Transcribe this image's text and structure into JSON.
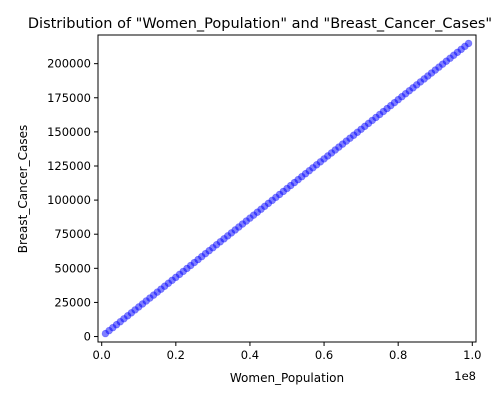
{
  "chart_data": {
    "type": "scatter",
    "title": "Distribution of \"Women_Population\" and \"Breast_Cancer_Cases\"",
    "xlabel": "Women_Population",
    "ylabel": "Breast_Cancer_Cases",
    "x_offset_label": "1e8",
    "xlim": [
      -1000000,
      101000000
    ],
    "ylim": [
      -4000,
      221000
    ],
    "x_ticks": [
      0,
      20000000,
      40000000,
      60000000,
      80000000,
      100000000
    ],
    "x_tick_labels": [
      "0.0",
      "0.2",
      "0.4",
      "0.6",
      "0.8",
      "1.0"
    ],
    "y_ticks": [
      0,
      25000,
      50000,
      75000,
      100000,
      125000,
      150000,
      175000,
      200000
    ],
    "y_tick_labels": [
      "0",
      "25000",
      "50000",
      "75000",
      "100000",
      "125000",
      "150000",
      "175000",
      "200000"
    ],
    "grid": false,
    "marker_color": "#0000ff",
    "marker_alpha": 0.5,
    "series": [
      {
        "x": [
          1000000,
          2000000,
          3000000,
          4000000,
          5000000,
          6000000,
          7000000,
          8000000,
          9000000,
          10000000,
          11000000,
          12000000,
          13000000,
          14000000,
          15000000,
          16000000,
          17000000,
          18000000,
          19000000,
          20000000,
          21000000,
          22000000,
          23000000,
          24000000,
          25000000,
          26000000,
          27000000,
          28000000,
          29000000,
          30000000,
          31000000,
          32000000,
          33000000,
          34000000,
          35000000,
          36000000,
          37000000,
          38000000,
          39000000,
          40000000,
          41000000,
          42000000,
          43000000,
          44000000,
          45000000,
          46000000,
          47000000,
          48000000,
          49000000,
          50000000,
          51000000,
          52000000,
          53000000,
          54000000,
          55000000,
          56000000,
          57000000,
          58000000,
          59000000,
          60000000,
          61000000,
          62000000,
          63000000,
          64000000,
          65000000,
          66000000,
          67000000,
          68000000,
          69000000,
          70000000,
          71000000,
          72000000,
          73000000,
          74000000,
          75000000,
          76000000,
          77000000,
          78000000,
          79000000,
          80000000,
          81000000,
          82000000,
          83000000,
          84000000,
          85000000,
          86000000,
          87000000,
          88000000,
          89000000,
          90000000,
          91000000,
          92000000,
          93000000,
          94000000,
          95000000,
          96000000,
          97000000,
          98000000,
          99000000
        ],
        "y": [
          2170,
          4340,
          6510,
          8680,
          10850,
          13020,
          15190,
          17360,
          19530,
          21700,
          23870,
          26040,
          28210,
          30380,
          32550,
          34720,
          36890,
          39060,
          41230,
          43400,
          45570,
          47740,
          49910,
          52080,
          54250,
          56420,
          58590,
          60760,
          62930,
          65100,
          67270,
          69440,
          71610,
          73780,
          75950,
          78120,
          80290,
          82460,
          84630,
          86800,
          88970,
          91140,
          93310,
          95480,
          97650,
          99820,
          101990,
          104160,
          106330,
          108500,
          110670,
          112840,
          115010,
          117180,
          119350,
          121520,
          123690,
          125860,
          128030,
          130200,
          132370,
          134540,
          136710,
          138880,
          141050,
          143220,
          145390,
          147560,
          149730,
          151900,
          154070,
          156240,
          158410,
          160580,
          162750,
          164920,
          167090,
          169260,
          171430,
          173600,
          175770,
          177940,
          180110,
          182280,
          184450,
          186620,
          188790,
          190960,
          193130,
          195300,
          197470,
          199640,
          201810,
          203980,
          206150,
          208320,
          210490,
          212660,
          214830
        ]
      }
    ]
  }
}
